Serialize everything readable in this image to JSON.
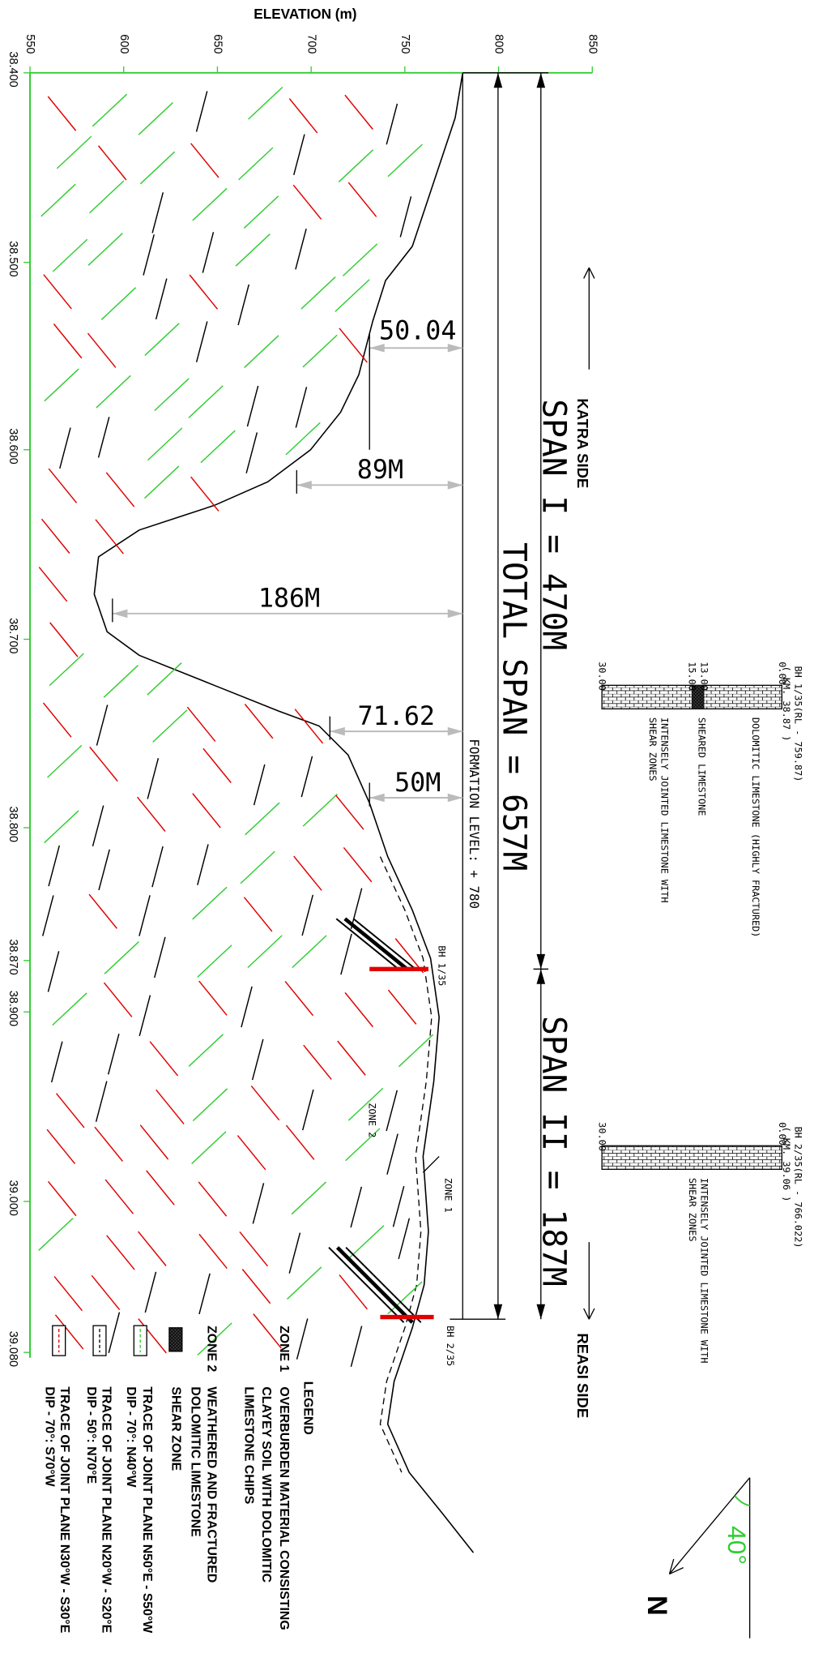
{
  "axis": {
    "title": "ELEVATION (m)",
    "elevation_ticks": [
      "550",
      "600",
      "650",
      "700",
      "750",
      "800",
      "850"
    ],
    "chainage_ticks": [
      "38.400",
      "38.500",
      "38.600",
      "38.700",
      "38.800",
      "38.870",
      "38.900",
      "39.000",
      "39.080"
    ]
  },
  "dimensions": [
    "50.04",
    "89M",
    "186M",
    "71.62",
    "50M"
  ],
  "spans": {
    "span_1": "SPAN I = 470M",
    "total": "TOTAL SPAN = 657M",
    "span_2": "SPAN II = 187M"
  },
  "formation_level": "FORMATION LEVEL: + 780",
  "sides": {
    "left": "KATRA SIDE",
    "right": "REASI SIDE"
  },
  "section_labels": {
    "bh_1": "BH 1/35",
    "bh_2": "BH 2/35",
    "zone_1": "ZONE 1",
    "zone_2": "ZONE 2"
  },
  "boreholes": [
    {
      "title": "BH 1/35(RL - 759.87)",
      "km": "( KM. 38.87 )",
      "depths": [
        "0.00",
        "13.00",
        "15.00",
        "30.00"
      ],
      "layers": [
        "DOLOMITIC LIMESTONE (HIGHLY FRACTURED)",
        "SHEARED LIMESTONE",
        "INTENSELY JOINTED LIMESTONE WITH",
        "SHEAR  ZONES"
      ]
    },
    {
      "title": "BH 2/35(RL - 766.022)",
      "km": "( KM. 39.06 )",
      "depths": [
        "0.00",
        "30.00"
      ],
      "layers": [
        "INTENSELY JOINTED LIMESTONE WITH",
        "SHEAR  ZONES"
      ]
    }
  ],
  "north": {
    "label": "N",
    "angle": "40°"
  },
  "legend": {
    "title": "LEGEND",
    "items": [
      {
        "key": "ZONE 1",
        "lines": [
          "OVERBURDEN MATERIAL CONSISTING",
          "CLAYEY SOIL WITH DOLOMITIC",
          "LIMESTONE CHIPS"
        ]
      },
      {
        "key": "ZONE 2",
        "lines": [
          "WEATHERED AND FRACTURED",
          "DOLOMITIC LIMESTONE"
        ]
      },
      {
        "lines": [
          "SHEAR ZONE"
        ]
      },
      {
        "lines": [
          "TRACE OF JOINT PLANE N50°E - S50°W",
          "DIP - 70°: N40°W"
        ]
      },
      {
        "lines": [
          "TRACE OF JOINT PLANE N20°W - S20°E",
          "DIP - 50°: N70°E"
        ]
      },
      {
        "lines": [
          "TRACE OF JOINT PLANE N30°W - S30°E",
          "DIP - 70°: S70°W"
        ]
      }
    ]
  }
}
